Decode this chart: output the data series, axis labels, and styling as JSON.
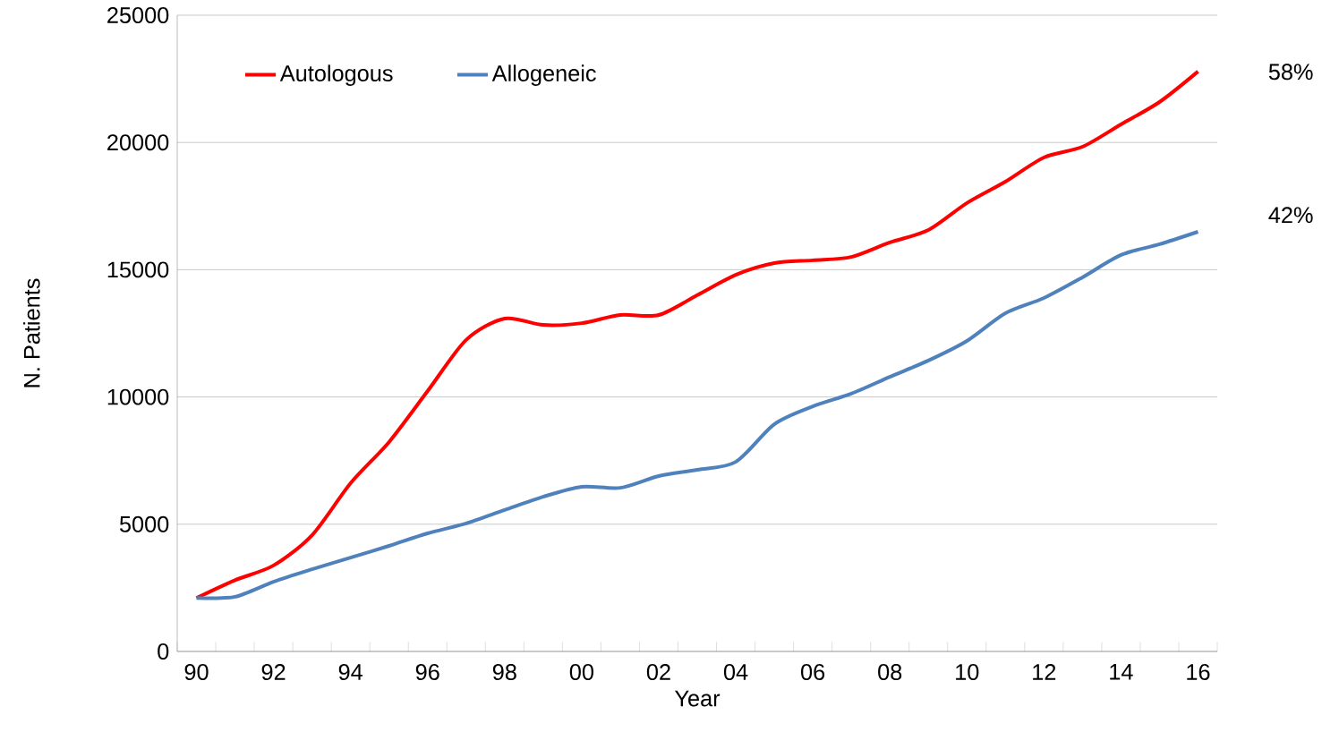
{
  "chart_data": {
    "type": "line",
    "xlabel": "Year",
    "ylabel": "N. Patients",
    "categories": [
      "90",
      null,
      "92",
      null,
      "94",
      null,
      "96",
      null,
      "98",
      null,
      "00",
      null,
      "02",
      null,
      "04",
      null,
      "06",
      null,
      "08",
      null,
      "10",
      null,
      "12",
      null,
      "14",
      null,
      "16"
    ],
    "series": [
      {
        "name": "Autologous",
        "color": "#ff0000",
        "values": [
          2100,
          2800,
          3380,
          4570,
          6610,
          8230,
          10230,
          12240,
          13080,
          12830,
          12900,
          13220,
          13220,
          14000,
          14800,
          15260,
          15370,
          15500,
          16070,
          16560,
          17620,
          18460,
          19410,
          19830,
          20710,
          21590,
          22790
        ]
      },
      {
        "name": "Allogeneic",
        "color": "#4f81bd",
        "values": [
          2100,
          2150,
          2740,
          3230,
          3690,
          4150,
          4640,
          5030,
          5560,
          6080,
          6470,
          6430,
          6890,
          7140,
          7450,
          8930,
          9630,
          10130,
          10790,
          11430,
          12200,
          13290,
          13890,
          14700,
          15580,
          16000,
          16490
        ]
      }
    ],
    "ylim": [
      0,
      25000
    ],
    "yticks": [
      0,
      5000,
      10000,
      15000,
      20000,
      25000
    ],
    "grid": "y",
    "legend": "top left",
    "line_style": "solid",
    "marker": "none",
    "annotations": [
      "58%",
      "42%"
    ]
  }
}
